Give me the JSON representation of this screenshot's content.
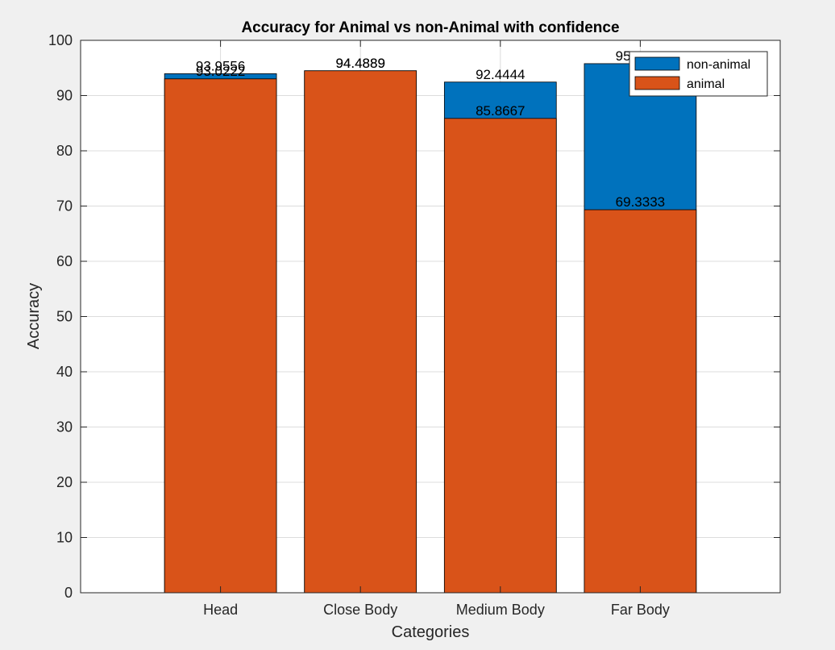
{
  "chart_data": {
    "type": "bar",
    "stacked": false,
    "title": "Accuracy for Animal vs non-Animal with confidence",
    "xlabel": "Categories",
    "ylabel": "Accuracy",
    "ylim": [
      0,
      100
    ],
    "yticks": [
      0,
      10,
      20,
      30,
      40,
      50,
      60,
      70,
      80,
      90,
      100
    ],
    "categories": [
      "Head",
      "Close Body",
      "Medium Body",
      "Far Body"
    ],
    "series": [
      {
        "name": "non-animal",
        "color": "#0072bd",
        "values": [
          93.9556,
          94.4889,
          92.4444,
          95.7778
        ]
      },
      {
        "name": "animal",
        "color": "#d95319",
        "values": [
          93.0222,
          94.4889,
          85.8667,
          69.3333
        ]
      }
    ],
    "data_labels": [
      [
        "93.9556",
        "94.4889",
        "92.4444",
        "95.7778"
      ],
      [
        "93.0222",
        "94.4889",
        "85.8667",
        "69.3333"
      ]
    ],
    "grid": true,
    "legend_position": "top-right"
  }
}
